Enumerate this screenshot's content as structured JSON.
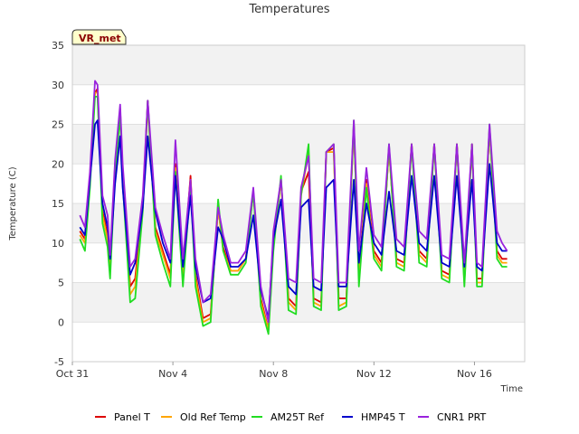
{
  "chart_data": {
    "type": "line",
    "title": "Temperatures",
    "xlabel": "Time",
    "ylabel": "Temperature (C)",
    "ylim": [
      -5,
      35
    ],
    "yticks": [
      -5,
      0,
      5,
      10,
      15,
      20,
      25,
      30,
      35
    ],
    "xlim_days": [
      0,
      18
    ],
    "xticks": [
      {
        "day": 0,
        "label": "Oct 31"
      },
      {
        "day": 4,
        "label": "Nov 4"
      },
      {
        "day": 8,
        "label": "Nov 8"
      },
      {
        "day": 12,
        "label": "Nov 12"
      },
      {
        "day": 16,
        "label": "Nov 16"
      }
    ],
    "grid": true,
    "site_tag": "VR_met",
    "series": [
      {
        "name": "Panel T",
        "color": "#dd0000",
        "x": [
          0.3,
          0.5,
          0.7,
          0.9,
          1.0,
          1.2,
          1.4,
          1.5,
          1.7,
          1.9,
          2.0,
          2.3,
          2.5,
          2.8,
          3.0,
          3.3,
          3.6,
          3.9,
          4.1,
          4.4,
          4.7,
          4.9,
          5.2,
          5.5,
          5.8,
          6.0,
          6.3,
          6.6,
          6.9,
          7.2,
          7.5,
          7.8,
          8.0,
          8.3,
          8.6,
          8.9,
          9.1,
          9.4,
          9.6,
          9.9,
          10.1,
          10.4,
          10.6,
          10.9,
          11.2,
          11.4,
          11.7,
          12.0,
          12.3,
          12.6,
          12.9,
          13.2,
          13.5,
          13.8,
          14.1,
          14.4,
          14.7,
          15.0,
          15.3,
          15.6,
          15.9,
          16.1,
          16.3,
          16.6,
          16.9,
          17.1,
          17.3
        ],
        "y": [
          11.5,
          10.5,
          18.5,
          29.0,
          29.5,
          14.0,
          11.0,
          7.0,
          20.0,
          27.0,
          19.0,
          4.5,
          5.5,
          15.0,
          28.0,
          12.0,
          9.0,
          6.0,
          20.0,
          6.0,
          18.5,
          6.0,
          0.5,
          1.0,
          14.5,
          9.5,
          6.5,
          6.5,
          8.0,
          16.5,
          3.0,
          -1.0,
          10.0,
          18.0,
          3.0,
          2.0,
          16.5,
          19.0,
          3.0,
          2.5,
          21.5,
          22.0,
          3.0,
          3.0,
          25.0,
          6.0,
          18.0,
          9.0,
          7.5,
          22.0,
          8.0,
          7.5,
          22.5,
          9.0,
          8.0,
          22.5,
          6.5,
          6.0,
          22.5,
          5.5,
          22.5,
          5.5,
          5.5,
          24.5,
          9.0,
          8.0,
          8.0
        ]
      },
      {
        "name": "Old Ref Temp",
        "color": "#ffa500",
        "x": [
          0.3,
          0.5,
          0.7,
          0.9,
          1.0,
          1.2,
          1.4,
          1.5,
          1.7,
          1.9,
          2.0,
          2.3,
          2.5,
          2.8,
          3.0,
          3.3,
          3.6,
          3.9,
          4.1,
          4.4,
          4.7,
          4.9,
          5.2,
          5.5,
          5.8,
          6.0,
          6.3,
          6.6,
          6.9,
          7.2,
          7.5,
          7.8,
          8.0,
          8.3,
          8.6,
          8.9,
          9.1,
          9.4,
          9.6,
          9.9,
          10.1,
          10.4,
          10.6,
          10.9,
          11.2,
          11.4,
          11.7,
          12.0,
          12.3,
          12.6,
          12.9,
          13.2,
          13.5,
          13.8,
          14.1,
          14.4,
          14.7,
          15.0,
          15.3,
          15.6,
          15.9,
          16.1,
          16.3,
          16.6,
          16.9,
          17.1,
          17.3
        ],
        "y": [
          11.0,
          10.0,
          18.0,
          29.0,
          29.0,
          13.5,
          10.5,
          6.5,
          19.5,
          26.5,
          18.5,
          3.5,
          4.5,
          14.5,
          27.5,
          11.5,
          8.5,
          5.5,
          19.5,
          5.5,
          18.0,
          5.5,
          0.0,
          0.5,
          14.5,
          9.0,
          6.5,
          6.5,
          8.0,
          16.5,
          2.5,
          -1.0,
          9.5,
          18.0,
          2.5,
          1.5,
          16.0,
          21.5,
          2.5,
          2.0,
          21.5,
          21.5,
          2.0,
          2.5,
          25.0,
          5.5,
          17.5,
          8.5,
          7.0,
          22.0,
          7.5,
          7.0,
          22.5,
          8.5,
          7.5,
          22.5,
          6.0,
          5.5,
          22.5,
          5.0,
          22.5,
          5.0,
          5.0,
          24.5,
          8.5,
          7.5,
          7.5
        ]
      },
      {
        "name": "AM25T Ref",
        "color": "#22dd22",
        "x": [
          0.3,
          0.5,
          0.7,
          0.9,
          1.0,
          1.2,
          1.4,
          1.5,
          1.7,
          1.9,
          2.0,
          2.3,
          2.5,
          2.8,
          3.0,
          3.3,
          3.6,
          3.9,
          4.1,
          4.4,
          4.7,
          4.9,
          5.2,
          5.5,
          5.8,
          6.0,
          6.3,
          6.6,
          6.9,
          7.2,
          7.5,
          7.8,
          8.0,
          8.3,
          8.6,
          8.9,
          9.1,
          9.4,
          9.6,
          9.9,
          10.1,
          10.4,
          10.6,
          10.9,
          11.2,
          11.4,
          11.7,
          12.0,
          12.3,
          12.6,
          12.9,
          13.2,
          13.5,
          13.8,
          14.1,
          14.4,
          14.7,
          15.0,
          15.3,
          15.6,
          15.9,
          16.1,
          16.3,
          16.6,
          16.9,
          17.1,
          17.3
        ],
        "y": [
          10.5,
          9.0,
          17.0,
          28.5,
          28.5,
          12.5,
          9.5,
          5.5,
          19.0,
          26.0,
          17.5,
          2.5,
          3.0,
          14.0,
          28.0,
          11.0,
          7.5,
          4.5,
          19.0,
          4.5,
          17.5,
          4.5,
          -0.5,
          0.0,
          15.5,
          9.0,
          6.0,
          6.0,
          7.5,
          16.5,
          2.0,
          -1.5,
          9.0,
          18.5,
          1.5,
          1.0,
          16.0,
          22.5,
          2.0,
          1.5,
          21.5,
          22.5,
          1.5,
          2.0,
          25.5,
          4.5,
          17.0,
          8.0,
          6.5,
          22.5,
          7.0,
          6.5,
          22.5,
          7.5,
          7.0,
          22.5,
          5.5,
          5.0,
          22.5,
          4.5,
          22.5,
          4.5,
          4.5,
          25.0,
          8.0,
          7.0,
          7.0
        ]
      },
      {
        "name": "HMP45 T",
        "color": "#0000cc",
        "x": [
          0.3,
          0.5,
          0.7,
          0.9,
          1.0,
          1.2,
          1.4,
          1.5,
          1.7,
          1.9,
          2.0,
          2.3,
          2.5,
          2.8,
          3.0,
          3.3,
          3.6,
          3.9,
          4.1,
          4.4,
          4.7,
          4.9,
          5.2,
          5.5,
          5.8,
          6.0,
          6.3,
          6.6,
          6.9,
          7.2,
          7.5,
          7.8,
          8.0,
          8.3,
          8.6,
          8.9,
          9.1,
          9.4,
          9.6,
          9.9,
          10.1,
          10.4,
          10.6,
          10.9,
          11.2,
          11.4,
          11.7,
          12.0,
          12.3,
          12.6,
          12.9,
          13.2,
          13.5,
          13.8,
          14.1,
          14.4,
          14.7,
          15.0,
          15.3,
          15.6,
          15.9,
          16.1,
          16.3,
          16.6,
          16.9,
          17.1,
          17.3
        ],
        "y": [
          12.0,
          11.0,
          18.0,
          25.0,
          25.5,
          15.0,
          12.0,
          8.0,
          17.5,
          23.5,
          17.0,
          6.0,
          7.5,
          14.5,
          23.5,
          14.0,
          10.0,
          7.5,
          18.5,
          7.0,
          16.0,
          7.0,
          2.5,
          3.0,
          12.0,
          10.5,
          7.0,
          7.0,
          8.0,
          13.5,
          4.0,
          0.5,
          10.5,
          15.5,
          4.5,
          3.5,
          14.5,
          15.5,
          4.5,
          4.0,
          17.0,
          18.0,
          4.5,
          4.5,
          18.0,
          7.5,
          15.0,
          10.0,
          8.5,
          16.5,
          9.0,
          8.5,
          18.5,
          10.0,
          9.0,
          18.5,
          7.5,
          7.0,
          18.5,
          7.0,
          18.0,
          7.0,
          6.5,
          20.0,
          10.0,
          9.0,
          9.0
        ]
      },
      {
        "name": "CNR1 PRT",
        "color": "#9922dd",
        "x": [
          0.3,
          0.5,
          0.7,
          0.9,
          1.0,
          1.2,
          1.4,
          1.5,
          1.7,
          1.9,
          2.0,
          2.3,
          2.5,
          2.8,
          3.0,
          3.3,
          3.6,
          3.9,
          4.1,
          4.4,
          4.7,
          4.9,
          5.2,
          5.5,
          5.8,
          6.0,
          6.3,
          6.6,
          6.9,
          7.2,
          7.5,
          7.8,
          8.0,
          8.3,
          8.6,
          8.9,
          9.1,
          9.4,
          9.6,
          9.9,
          10.1,
          10.4,
          10.6,
          10.9,
          11.2,
          11.4,
          11.7,
          12.0,
          12.3,
          12.6,
          12.9,
          13.2,
          13.5,
          13.8,
          14.1,
          14.4,
          14.7,
          15.0,
          15.3,
          15.6,
          15.9,
          16.1,
          16.3,
          16.6,
          16.9,
          17.1,
          17.3
        ],
        "y": [
          13.5,
          12.0,
          19.0,
          30.5,
          30.0,
          16.0,
          13.5,
          8.5,
          20.5,
          27.5,
          20.0,
          7.0,
          8.0,
          16.0,
          28.0,
          14.5,
          11.0,
          8.0,
          23.0,
          8.0,
          18.0,
          8.0,
          2.5,
          3.5,
          14.5,
          11.0,
          7.5,
          7.5,
          9.0,
          17.0,
          4.5,
          0.0,
          11.5,
          18.0,
          5.5,
          5.0,
          17.0,
          21.0,
          5.5,
          5.0,
          21.5,
          22.5,
          5.0,
          5.0,
          25.5,
          9.0,
          19.5,
          11.0,
          9.5,
          22.5,
          10.5,
          9.5,
          22.5,
          11.5,
          10.5,
          22.5,
          8.5,
          8.0,
          22.5,
          7.5,
          22.5,
          7.5,
          7.0,
          25.0,
          11.5,
          10.0,
          9.0
        ]
      }
    ]
  }
}
